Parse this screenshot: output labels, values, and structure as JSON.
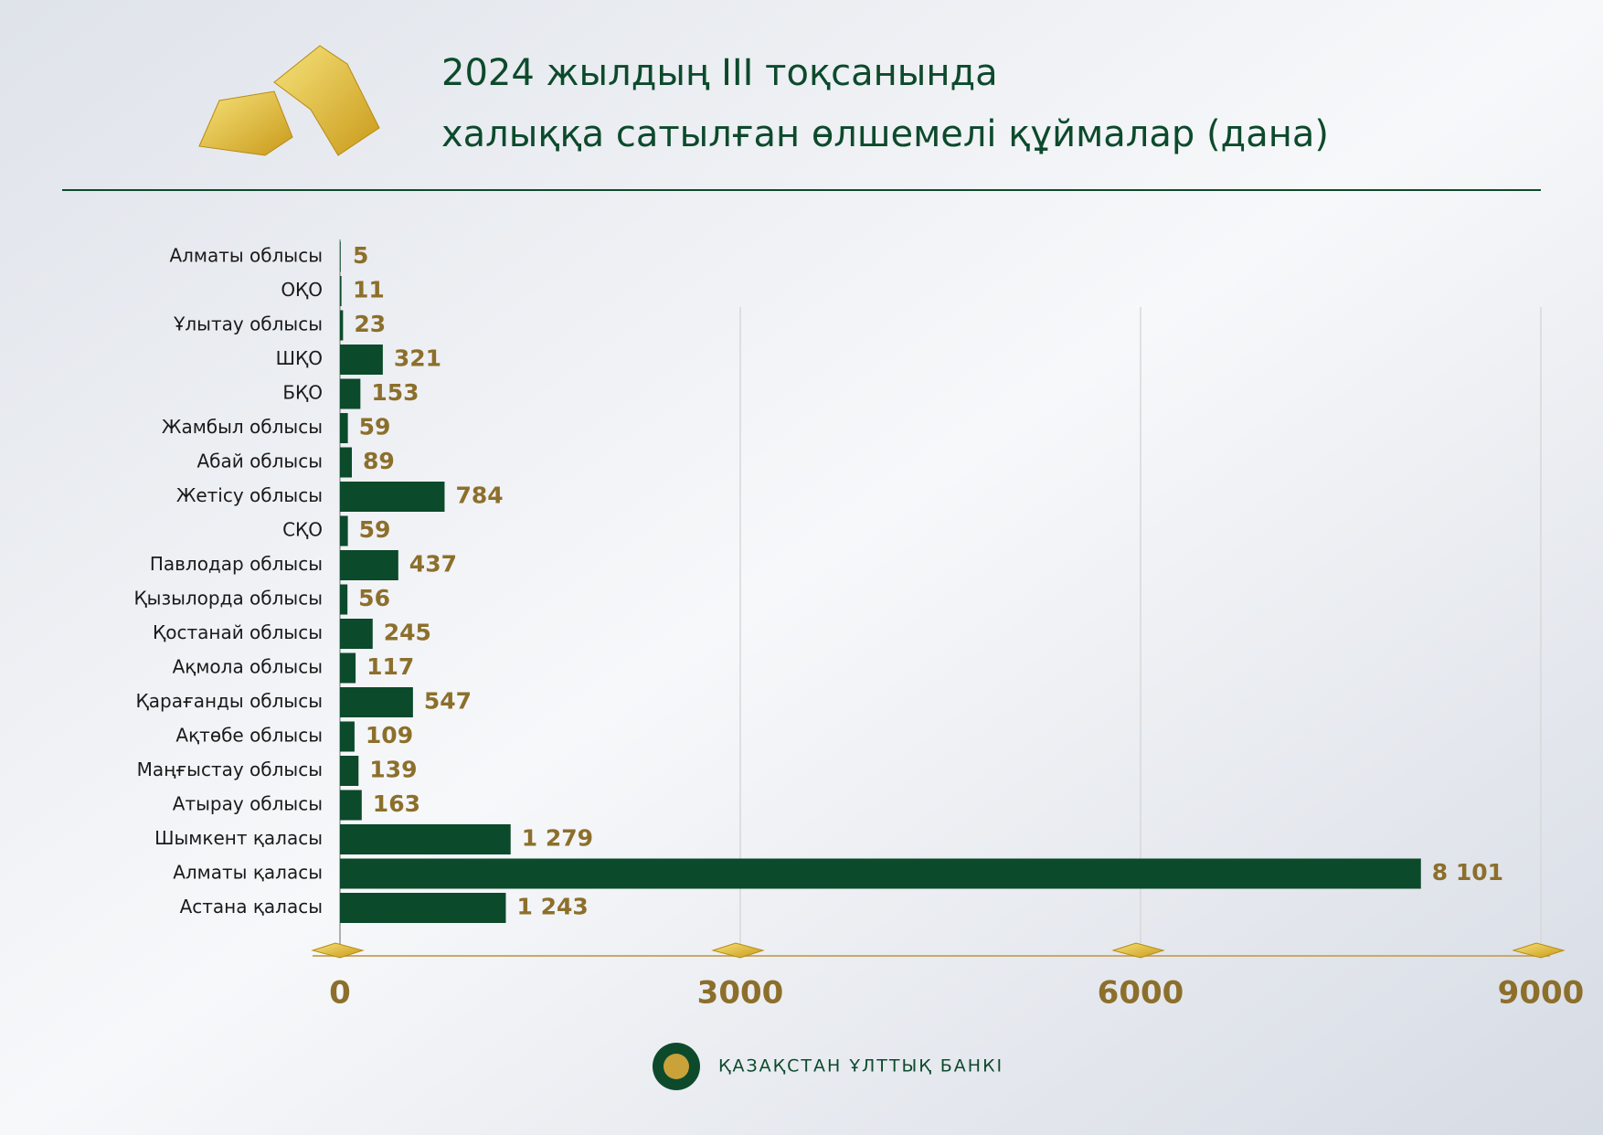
{
  "chart_data": {
    "type": "bar",
    "orientation": "horizontal",
    "title": [
      "2024 жылдың III  тоқсанында",
      "халыққа сатылған өлшемелі құймалар (дана)"
    ],
    "categories": [
      "Алматы облысы",
      "ОҚО",
      "Ұлытау облысы",
      "ШҚО",
      "БҚО",
      "Жамбыл облысы",
      "Абай облысы",
      "Жетісу облысы",
      "СҚО",
      "Павлодар облысы",
      "Қызылорда облысы",
      "Қостанай облысы",
      "Ақмола облысы",
      "Қарағанды облысы",
      "Ақтөбе облысы",
      "Маңғыстау облысы",
      "Атырау облысы",
      "Шымкент қаласы",
      "Алматы қаласы",
      "Астана қаласы"
    ],
    "values": [
      5,
      11,
      23,
      321,
      153,
      59,
      89,
      784,
      59,
      437,
      56,
      245,
      117,
      547,
      109,
      139,
      163,
      1279,
      8101,
      1243
    ],
    "value_labels": [
      "5",
      "11",
      "23",
      "321",
      "153",
      "59",
      "89",
      "784",
      "59",
      "437",
      "56",
      "245",
      "117",
      "547",
      "109",
      "139",
      "163",
      "1 279",
      "8 101",
      "1 243"
    ],
    "color": "#0b4a2a",
    "xlim": [
      0,
      9000
    ],
    "xticks": [
      0,
      3000,
      6000,
      9000
    ],
    "grid": true,
    "source": "ҚАЗАҚСТАН ҰЛТТЫҚ БАНКІ"
  }
}
